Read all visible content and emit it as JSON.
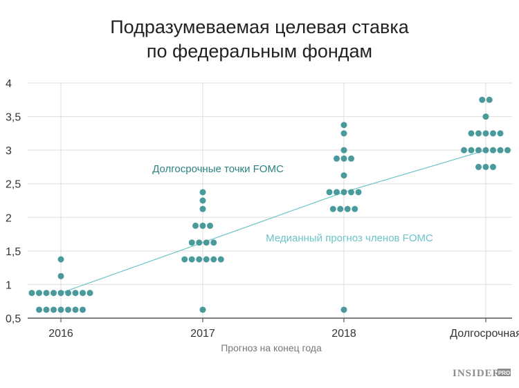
{
  "chart_data": {
    "type": "scatter",
    "title_lines": [
      "Подразумеваемая целевая ставка",
      "по федеральным фондам"
    ],
    "xlabel": "Прогноз на конец года",
    "ylabel": "",
    "ylim": [
      0.5,
      4
    ],
    "yticks": [
      {
        "value": 0.5,
        "label": "0,5"
      },
      {
        "value": 1,
        "label": "1"
      },
      {
        "value": 1.5,
        "label": "1,5"
      },
      {
        "value": 2,
        "label": "2"
      },
      {
        "value": 2.5,
        "label": "2,5"
      },
      {
        "value": 3,
        "label": "3"
      },
      {
        "value": 3.5,
        "label": "3,5"
      },
      {
        "value": 4,
        "label": "4"
      }
    ],
    "categories": [
      "2016",
      "2017",
      "2018",
      "Долгосрочная"
    ],
    "grid": true,
    "dot_color": "#4a9a9c",
    "median_color": "#6cc3c8",
    "series": [
      {
        "name": "Долгосрочные точки FOMC",
        "groups": [
          {
            "category": "2016",
            "levels": [
              {
                "rate": 1.375,
                "count": 1
              },
              {
                "rate": 1.125,
                "count": 1
              },
              {
                "rate": 0.875,
                "count": 9
              },
              {
                "rate": 0.625,
                "count": 7
              }
            ]
          },
          {
            "category": "2017",
            "levels": [
              {
                "rate": 2.375,
                "count": 1
              },
              {
                "rate": 2.25,
                "count": 1
              },
              {
                "rate": 2.125,
                "count": 1
              },
              {
                "rate": 1.875,
                "count": 3
              },
              {
                "rate": 1.625,
                "count": 4
              },
              {
                "rate": 1.375,
                "count": 6
              },
              {
                "rate": 0.625,
                "count": 1
              }
            ]
          },
          {
            "category": "2018",
            "levels": [
              {
                "rate": 3.375,
                "count": 1
              },
              {
                "rate": 3.25,
                "count": 1
              },
              {
                "rate": 3.0,
                "count": 1
              },
              {
                "rate": 2.875,
                "count": 3
              },
              {
                "rate": 2.625,
                "count": 1
              },
              {
                "rate": 2.375,
                "count": 5
              },
              {
                "rate": 2.125,
                "count": 4
              },
              {
                "rate": 0.625,
                "count": 1
              }
            ]
          },
          {
            "category": "Долгосрочная",
            "levels": [
              {
                "rate": 3.75,
                "count": 2
              },
              {
                "rate": 3.5,
                "count": 1
              },
              {
                "rate": 3.25,
                "count": 5
              },
              {
                "rate": 3.0,
                "count": 7
              },
              {
                "rate": 2.75,
                "count": 3
              }
            ]
          }
        ]
      },
      {
        "name": "Медианный прогноз членов FOMC",
        "type": "line",
        "values": [
          0.875,
          1.625,
          2.375,
          3.0
        ]
      }
    ],
    "annotations": [
      {
        "text": "Долгосрочные точки FOMC"
      },
      {
        "text": "Медианный прогноз членов FOMC"
      }
    ]
  },
  "watermark": {
    "main": "INSIDER",
    "sub": "PRO"
  }
}
